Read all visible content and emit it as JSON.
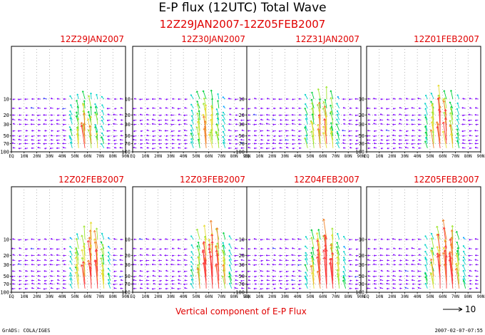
{
  "title": "E-P flux (12UTC) Total Wave",
  "subtitle": "12Z29JAN2007-12Z05FEB2007",
  "caption": "Vertical component of E-P Flux",
  "reference_vector_label": "10",
  "footer_left": "GrADS: COLA/IGES",
  "footer_right": "2007-02-07-07:55",
  "colors": {
    "title": "#000000",
    "subtitle": "#e00000",
    "grid": "#888888",
    "arrow_palette": [
      "#8000ff",
      "#3c3cff",
      "#00a0ff",
      "#00d2c8",
      "#00d23c",
      "#a0e632",
      "#e6dc32",
      "#f08228",
      "#fa3c3c"
    ]
  },
  "chart_data": [
    {
      "type": "vector",
      "title": "12Z29JAN2007",
      "intensity": 0.45
    },
    {
      "type": "vector",
      "title": "12Z30JAN2007",
      "intensity": 0.45
    },
    {
      "type": "vector",
      "title": "12Z31JAN2007",
      "intensity": 0.6
    },
    {
      "type": "vector",
      "title": "12Z01FEB2007",
      "intensity": 0.7
    },
    {
      "type": "vector",
      "title": "12Z02FEB2007",
      "intensity": 0.85
    },
    {
      "type": "vector",
      "title": "12Z03FEB2007",
      "intensity": 1.0
    },
    {
      "type": "vector",
      "title": "12Z04FEB2007",
      "intensity": 1.0
    },
    {
      "type": "vector",
      "title": "12Z05FEB2007",
      "intensity": 1.0
    }
  ],
  "axes": {
    "x_ticks": [
      "EQ",
      "10N",
      "20N",
      "30N",
      "40N",
      "50N",
      "60N",
      "70N",
      "80N",
      "90N"
    ],
    "y_ticks": [
      {
        "p": 10,
        "label": "10"
      },
      {
        "p": 20,
        "label": "20"
      },
      {
        "p": 30,
        "label": "30"
      },
      {
        "p": 50,
        "label": "50"
      },
      {
        "p": 70,
        "label": "70"
      },
      {
        "p": 100,
        "label": "100"
      }
    ],
    "ylim": [
      1,
      100
    ],
    "xlim": [
      0,
      90
    ],
    "y_scale": "log",
    "grid": true
  }
}
